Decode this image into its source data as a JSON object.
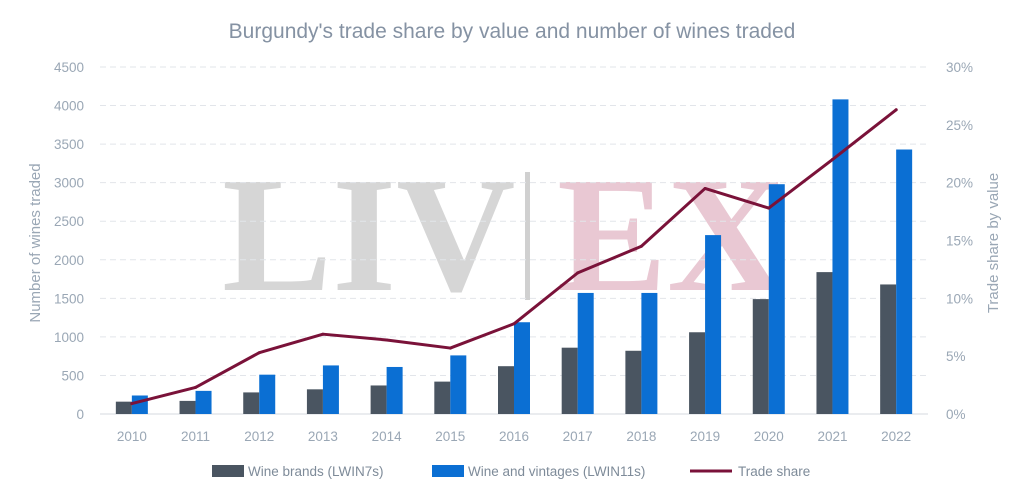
{
  "chart_data": {
    "type": "bar",
    "title": "Burgundy's trade share by value and number of wines traded",
    "ylabel": "Number of wines traded",
    "y2label": "Trade share by value",
    "categories": [
      "2010",
      "2011",
      "2012",
      "2013",
      "2014",
      "2015",
      "2016",
      "2017",
      "2018",
      "2019",
      "2020",
      "2021",
      "2022"
    ],
    "ylim": [
      0,
      4500
    ],
    "y_ticks": [
      0,
      500,
      1000,
      1500,
      2000,
      2500,
      3000,
      3500,
      4000,
      4500
    ],
    "y_tick_labels": [
      "0",
      "500",
      "1000",
      "1500",
      "2000",
      "2500",
      "3000",
      "3500",
      "4000",
      "4500"
    ],
    "y2lim": [
      0,
      30
    ],
    "y2_ticks": [
      0,
      5,
      10,
      15,
      20,
      25,
      30
    ],
    "y2_tick_labels": [
      "0%",
      "5%",
      "10%",
      "15%",
      "20%",
      "25%",
      "30%"
    ],
    "grid": true,
    "legend_position": "bottom",
    "watermark": {
      "left": "LIV",
      "right": "EX"
    },
    "series": [
      {
        "name": "Wine brands (LWIN7s)",
        "kind": "bar",
        "axis": "left",
        "color": "#4a5561",
        "values": [
          160,
          170,
          280,
          320,
          370,
          420,
          620,
          860,
          820,
          1060,
          1490,
          1840,
          1680
        ]
      },
      {
        "name": "Wine and vintages (LWIN11s)",
        "kind": "bar",
        "axis": "left",
        "color": "#0b6fd3",
        "values": [
          240,
          300,
          510,
          630,
          610,
          760,
          1190,
          1570,
          1570,
          2320,
          2980,
          4080,
          3430
        ]
      },
      {
        "name": "Trade share",
        "kind": "line",
        "axis": "right",
        "color": "#7a1239",
        "values": [
          0.9,
          2.3,
          5.3,
          6.9,
          6.4,
          5.7,
          7.8,
          12.2,
          14.5,
          19.5,
          17.8,
          22.0,
          26.3
        ]
      }
    ]
  }
}
